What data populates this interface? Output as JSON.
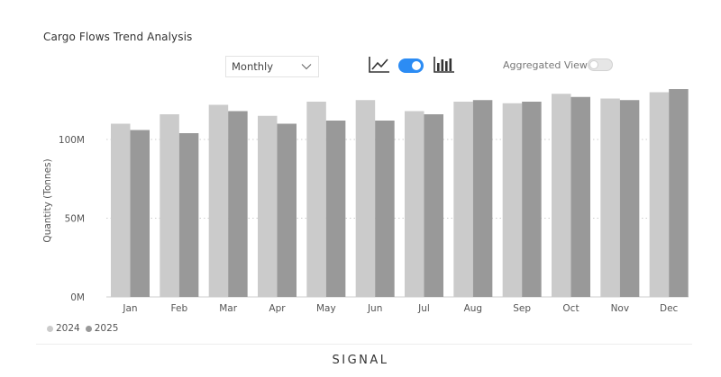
{
  "title": "Cargo Flows Trend Analysis",
  "controls": {
    "period_dropdown": {
      "selected": "Monthly"
    },
    "line_icon": "line-chart-icon",
    "chart_toggle_on": true,
    "bar_icon": "bar-chart-icon",
    "aggregated_view_label": "Aggregated View",
    "aggregated_view_on": false
  },
  "brand": "SIGNAL",
  "colors": {
    "series_2024": "#cbcbcb",
    "series_2025": "#999999",
    "toggle_on": "#2c8cf4"
  },
  "chart_data": {
    "type": "bar",
    "categories": [
      "Jan",
      "Feb",
      "Mar",
      "Apr",
      "May",
      "Jun",
      "Jul",
      "Aug",
      "Sep",
      "Oct",
      "Nov",
      "Dec"
    ],
    "series": [
      {
        "name": "2024",
        "values": [
          110,
          116,
          122,
          115,
          124,
          125,
          118,
          124,
          123,
          129,
          126,
          130
        ]
      },
      {
        "name": "2025",
        "values": [
          106,
          104,
          118,
          110,
          112,
          112,
          116,
          125,
          124,
          127,
          125,
          132
        ]
      }
    ],
    "ylabel": "Quantity (Tonnes)",
    "xlabel": "",
    "ylim": [
      0,
      140
    ],
    "yticks": [
      0,
      50,
      100
    ],
    "ytick_labels": [
      "0M",
      "50M",
      "100M"
    ],
    "grid": true,
    "legend_position": "bottom-left"
  }
}
